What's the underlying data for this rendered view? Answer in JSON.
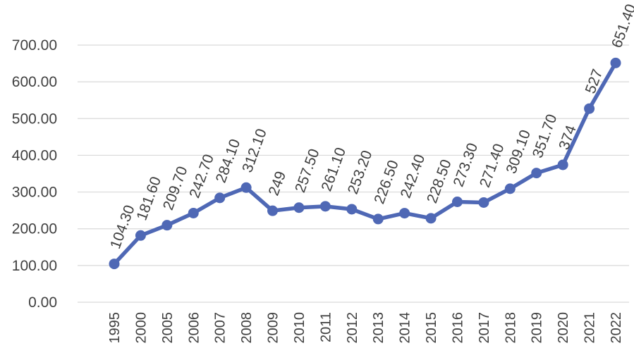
{
  "chart_data": {
    "type": "line",
    "title": "",
    "xlabel": "",
    "ylabel": "",
    "categories": [
      "1995",
      "2000",
      "2005",
      "2006",
      "2007",
      "2008",
      "2009",
      "2010",
      "2011",
      "2012",
      "2013",
      "2014",
      "2015",
      "2016",
      "2017",
      "2018",
      "2019",
      "2020",
      "2021",
      "2022"
    ],
    "series": [
      {
        "values": [
          104.3,
          181.6,
          209.7,
          242.7,
          284.1,
          312.1,
          249,
          257.5,
          261.1,
          253.2,
          226.5,
          242.4,
          228.5,
          273.3,
          271.4,
          309.1,
          351.7,
          374,
          527,
          651.4
        ],
        "data_labels": [
          "104.30",
          "181.60",
          "209.70",
          "242.70",
          "284.10",
          "312.10",
          "249",
          "257.50",
          "261.10",
          "253.20",
          "226.50",
          "242.40",
          "228.50",
          "273.30",
          "271.40",
          "309.10",
          "351.70",
          "374",
          "527",
          "651.40"
        ]
      }
    ],
    "y_ticks": [
      "0.00",
      "100.00",
      "200.00",
      "300.00",
      "400.00",
      "500.00",
      "600.00",
      "700.00"
    ],
    "ylim": [
      0,
      700
    ],
    "grid": true,
    "legend": "none",
    "colors": {
      "series": "#4f68b5",
      "grid": "#d9d9d9",
      "text": "#404040"
    }
  }
}
